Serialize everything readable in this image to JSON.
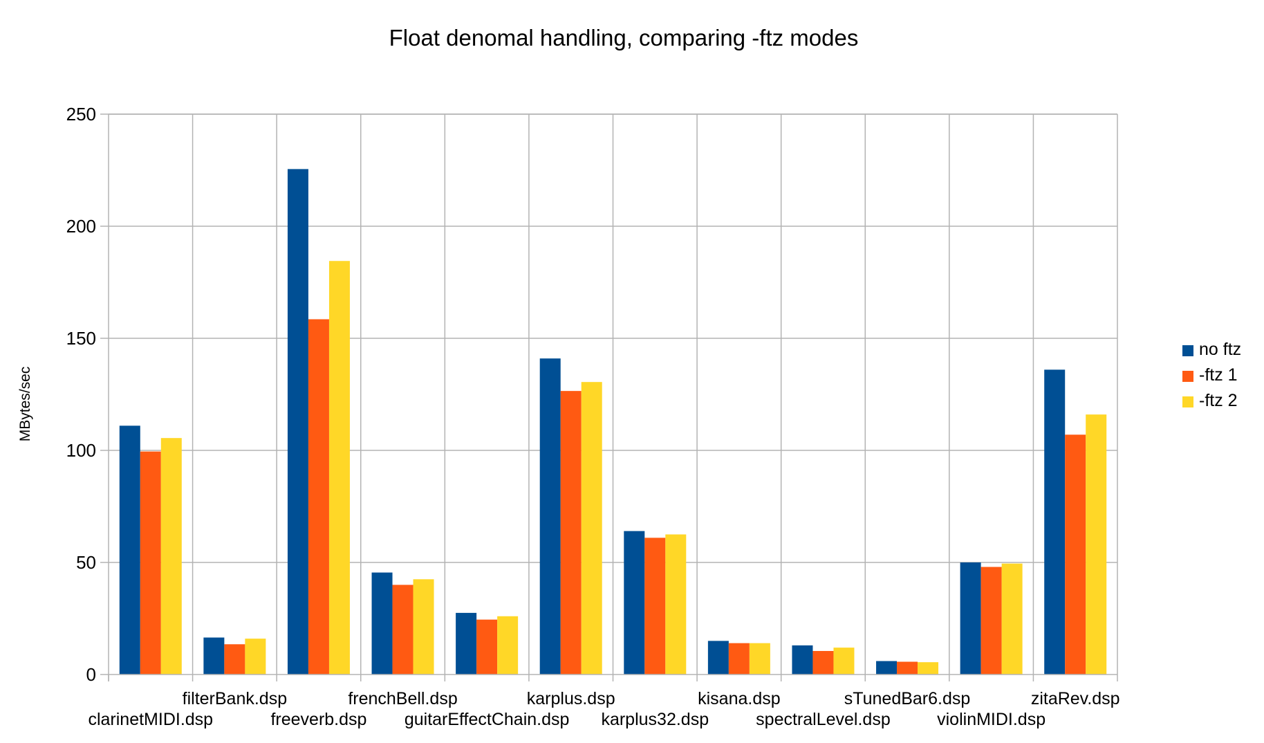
{
  "chart_data": {
    "type": "bar",
    "title": "Float denomal handling, comparing -ftz modes",
    "xlabel": "",
    "ylabel": "MBytes/sec",
    "ylim": [
      0,
      250
    ],
    "yticks": [
      0,
      50,
      100,
      150,
      200,
      250
    ],
    "grid": true,
    "legend_position": "right",
    "categories": [
      "clarinetMIDI.dsp",
      "filterBank.dsp",
      "freeverb.dsp",
      "frenchBell.dsp",
      "guitarEffectChain.dsp",
      "karplus.dsp",
      "karplus32.dsp",
      "kisana.dsp",
      "spectralLevel.dsp",
      "sTunedBar6.dsp",
      "violinMIDI.dsp",
      "zitaRev.dsp"
    ],
    "series": [
      {
        "name": "no ftz",
        "color": "#004f94",
        "values": [
          111,
          16.5,
          225.5,
          45.5,
          27.5,
          141,
          64,
          15,
          13,
          6,
          50,
          136
        ]
      },
      {
        "name": "-ftz 1",
        "color": "#ff5a12",
        "values": [
          99.5,
          13.5,
          158.5,
          40,
          24.5,
          126.5,
          61,
          14,
          10.5,
          5.7,
          48,
          107
        ]
      },
      {
        "name": "-ftz 2",
        "color": "#ffd727",
        "values": [
          105.5,
          16,
          184.5,
          42.5,
          26,
          130.5,
          62.5,
          14,
          12,
          5.5,
          49.5,
          116
        ]
      }
    ]
  }
}
